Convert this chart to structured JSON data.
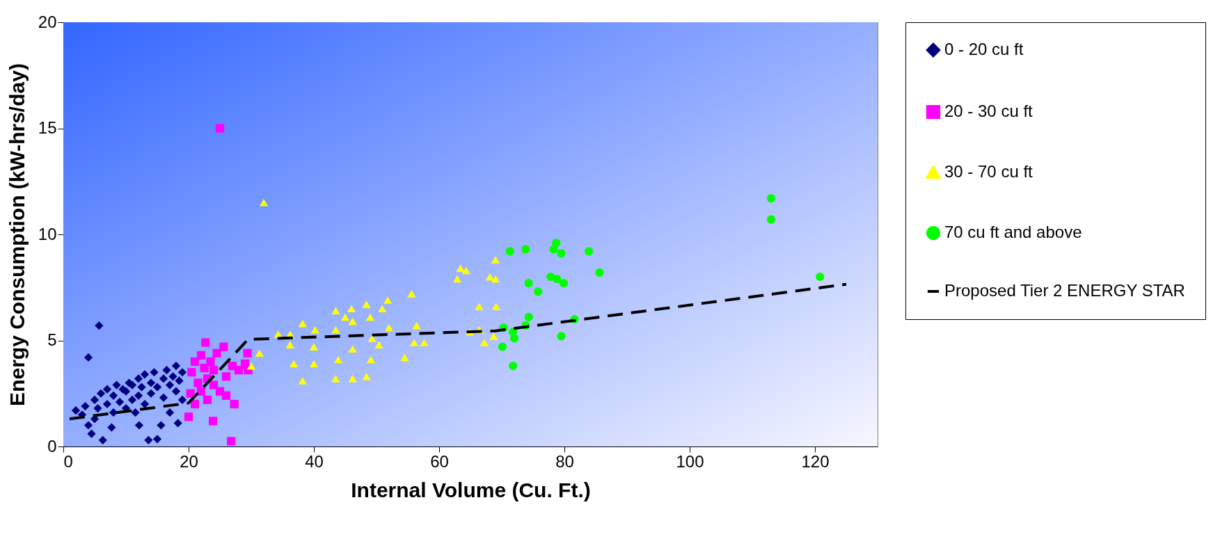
{
  "chart_data": {
    "type": "scatter",
    "xlabel": "Internal Volume (Cu. Ft.)",
    "ylabel": "Energy Consumption (kW-hrs/day)",
    "xlim": [
      0,
      130
    ],
    "xticks": [
      0,
      20,
      40,
      60,
      80,
      100,
      120
    ],
    "ylim": [
      0,
      20
    ],
    "yticks": [
      0,
      5,
      10,
      15,
      20
    ],
    "grid": false,
    "legend": "right",
    "series": [
      {
        "name": "0 - 20 cu ft",
        "color": "#000080",
        "marker": "diamond",
        "x": [
          2,
          3,
          3.5,
          4,
          4,
          4.5,
          5,
          5,
          5.5,
          5.7,
          6,
          6.3,
          7,
          7,
          7.7,
          8,
          8,
          8.5,
          9,
          9.5,
          10,
          10,
          10.5,
          11,
          11,
          11.5,
          12,
          12,
          12.1,
          12.5,
          13,
          13,
          13.6,
          14,
          14,
          14.5,
          15,
          15,
          15.6,
          16,
          16,
          16.5,
          17,
          17,
          17.5,
          18,
          18,
          18.3,
          18.5,
          19,
          19
        ],
        "values": [
          1.7,
          1.5,
          1.9,
          1.0,
          4.2,
          0.6,
          1.3,
          2.2,
          1.8,
          5.7,
          2.5,
          0.3,
          2.7,
          2.0,
          0.9,
          2.4,
          1.6,
          2.9,
          2.1,
          2.7,
          1.8,
          2.6,
          3.0,
          2.2,
          2.9,
          1.6,
          3.2,
          2.4,
          1.0,
          2.8,
          3.4,
          2.0,
          0.3,
          3.0,
          2.5,
          3.5,
          0.35,
          2.8,
          1.0,
          3.2,
          2.3,
          3.6,
          2.9,
          1.6,
          3.3,
          3.8,
          2.6,
          1.1,
          3.1,
          3.5,
          2.2
        ]
      },
      {
        "name": "20 - 30 cu ft",
        "color": "#ff00ff",
        "marker": "square",
        "x": [
          20,
          20.3,
          20.5,
          21,
          21,
          21.5,
          22,
          22,
          22.5,
          22.7,
          23,
          23,
          23.5,
          23.9,
          24,
          24,
          24.5,
          25,
          25,
          25.6,
          26,
          26,
          26.8,
          27,
          27.3,
          28,
          29.4,
          29.5,
          29
        ],
        "values": [
          1.4,
          2.5,
          3.5,
          4.0,
          2.0,
          3.0,
          4.3,
          2.6,
          3.7,
          4.9,
          3.2,
          2.2,
          4.0,
          1.2,
          2.9,
          3.6,
          4.4,
          15,
          2.6,
          4.7,
          3.3,
          2.4,
          0.25,
          3.8,
          2.0,
          3.6,
          4.4,
          3.6,
          3.9
        ]
      },
      {
        "name": "30 - 70 cu ft",
        "color": "#ffff00",
        "marker": "triangle",
        "x": [
          30,
          31.3,
          32,
          34.3,
          36.2,
          36.2,
          36.8,
          38.2,
          38.2,
          40.2,
          40,
          40,
          43.5,
          43.5,
          43.9,
          43.5,
          45,
          46,
          46.2,
          46.2,
          46.2,
          48.4,
          49,
          49.3,
          49.1,
          48.4,
          50.9,
          51.8,
          52,
          50.4,
          55.6,
          56.4,
          56,
          57.6,
          54.5,
          62.9,
          63.4,
          64.3,
          66.4,
          69.1,
          66.4,
          67.2,
          69,
          68.1,
          69,
          64.9,
          68.7
        ],
        "values": [
          3.8,
          4.4,
          11.5,
          5.3,
          5.3,
          4.8,
          3.9,
          3.1,
          5.8,
          5.5,
          4.7,
          3.9,
          6.4,
          5.5,
          4.1,
          3.2,
          6.1,
          6.5,
          5.9,
          4.6,
          3.2,
          6.7,
          6.1,
          5.1,
          4.1,
          3.3,
          6.5,
          6.9,
          5.6,
          4.8,
          7.2,
          5.7,
          4.9,
          4.9,
          4.2,
          7.9,
          8.4,
          8.3,
          6.6,
          6.6,
          5.5,
          4.9,
          8.8,
          8.0,
          7.9,
          5.4,
          5.2
        ]
      },
      {
        "name": "70 cu ft and above",
        "color": "#00ff00",
        "marker": "circle",
        "x": [
          71.3,
          73.8,
          78.7,
          78.3,
          79.5,
          83.9,
          85.6,
          74.3,
          75.8,
          77.8,
          78.8,
          79.9,
          74.3,
          73.8,
          81.6,
          79.5,
          70.3,
          71.8,
          72,
          70.1,
          71.8,
          113,
          113,
          120.8
        ],
        "values": [
          9.2,
          9.3,
          9.6,
          9.3,
          9.1,
          9.2,
          8.2,
          7.7,
          7.3,
          8.0,
          7.9,
          7.7,
          6.1,
          5.7,
          6.0,
          5.2,
          5.6,
          5.4,
          5.1,
          4.7,
          3.8,
          11.7,
          10.7,
          8.0
        ]
      },
      {
        "name": "Proposed Tier 2 ENERGY STAR",
        "type": "line",
        "color": "#000000",
        "marker": "none",
        "line_style": "dashed",
        "x": [
          1,
          20,
          29.5,
          69,
          125
        ],
        "values": [
          1.3,
          2.05,
          5.05,
          5.45,
          7.65
        ]
      }
    ]
  }
}
